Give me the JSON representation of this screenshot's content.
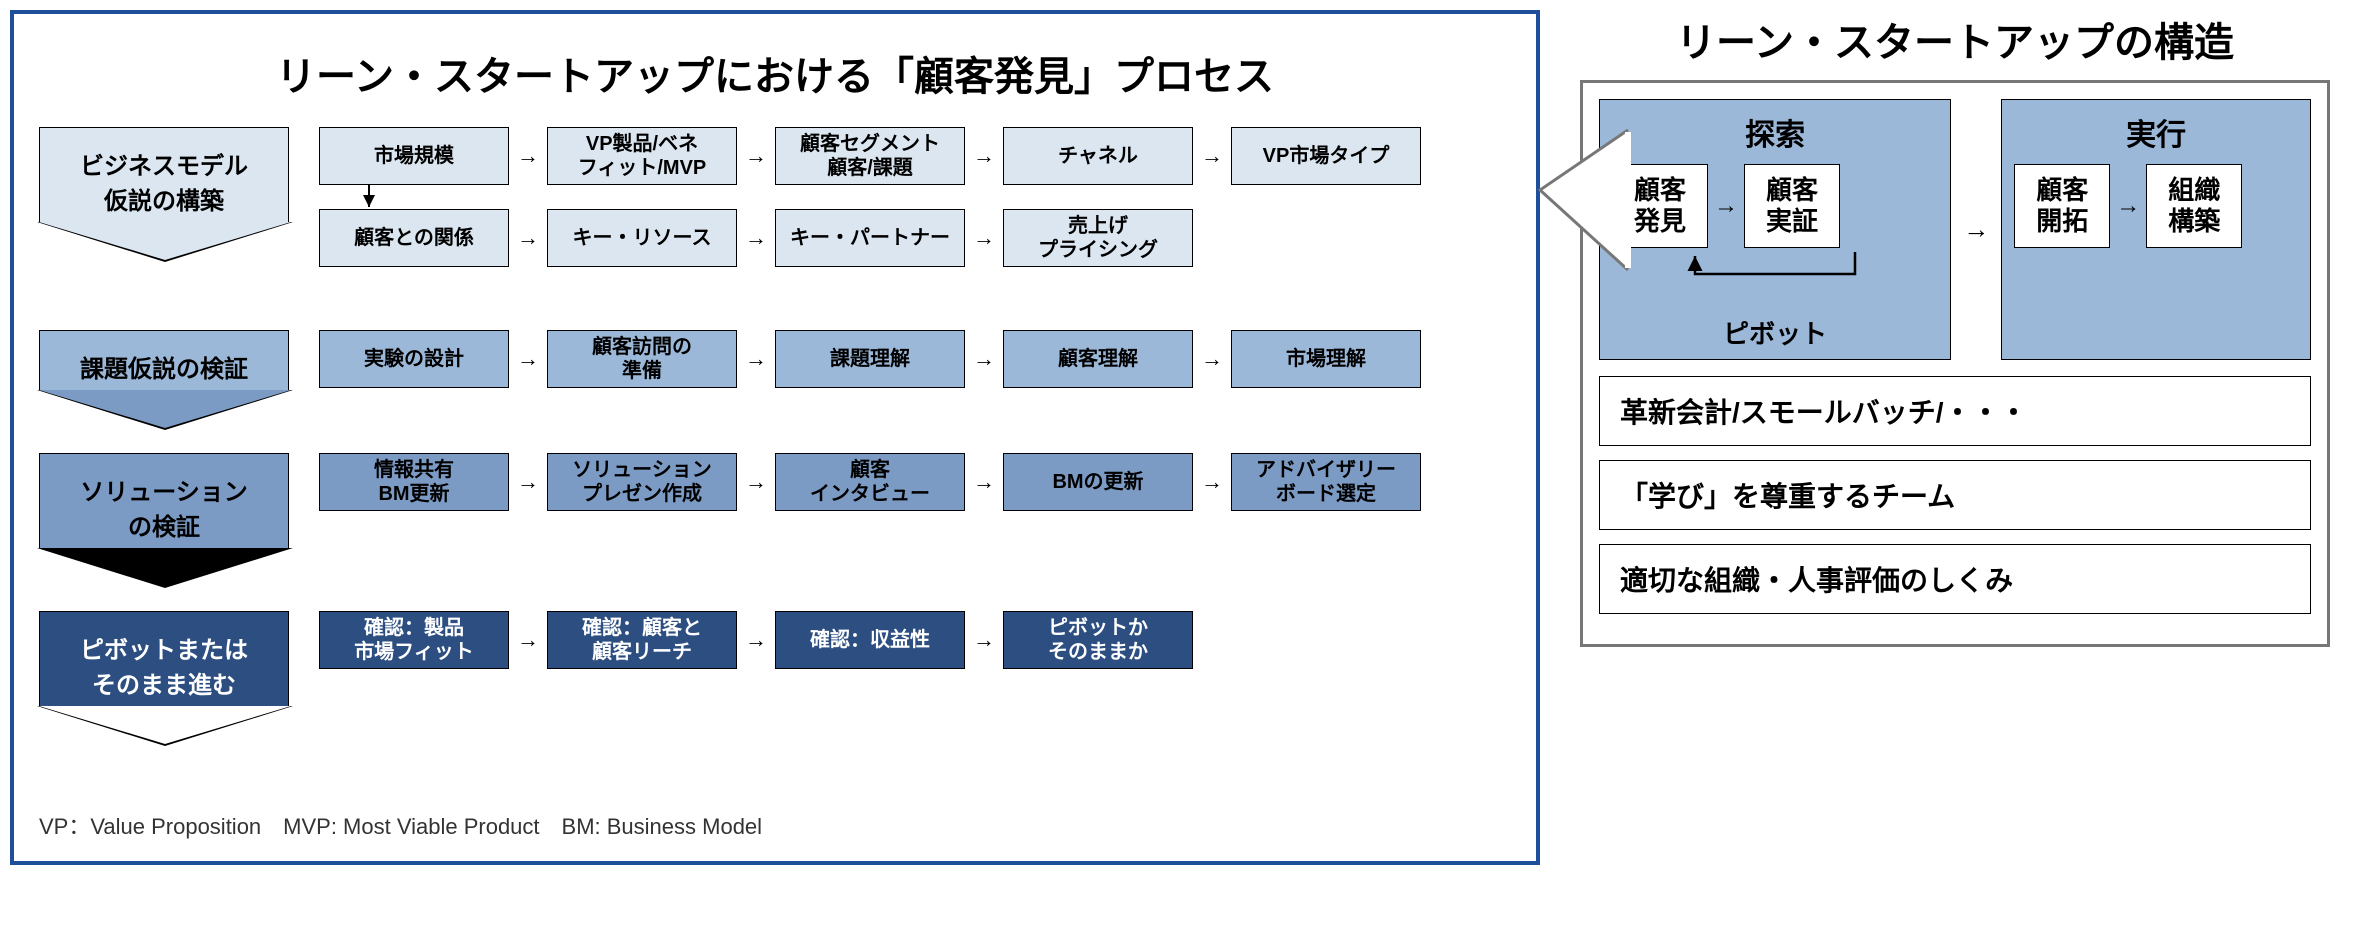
{
  "left": {
    "title": "リーン・スタートアップにおける「顧客発見」プロセス",
    "stages": [
      {
        "label": "ビジネスモデル\n仮説の構築",
        "bg": "#dbe6f1",
        "text": "#000000",
        "box_bg": "#dbe6f1",
        "box_text": "#000000",
        "rows": [
          [
            "市場規模",
            "VP製品/ベネ\nフィット/MVP",
            "顧客セグメント\n顧客/課題",
            "チャネル",
            "VP市場タイプ"
          ],
          [
            "顧客との関係",
            "キー・リソース",
            "キー・パートナー",
            "売上げ\nプライシング"
          ]
        ]
      },
      {
        "label": "課題仮説の検証",
        "bg": "#9cb8d8",
        "text": "#000000",
        "box_bg": "#9cb8d8",
        "box_text": "#000000",
        "rows": [
          [
            "実験の設計",
            "顧客訪問の\n準備",
            "課題理解",
            "顧客理解",
            "市場理解"
          ]
        ]
      },
      {
        "label": "ソリューション\nの検証",
        "bg": "#7b9ac4",
        "text": "#000000",
        "box_bg": "#7b9ac4",
        "box_text": "#000000",
        "rows": [
          [
            "情報共有\nBM更新",
            "ソリューション\nプレゼン作成",
            "顧客\nインタビュー",
            "BMの更新",
            "アドバイザリー\nボード選定"
          ]
        ]
      },
      {
        "label": "ピボットまたは\nそのまま進む",
        "bg": "#2c4e80",
        "text": "#ffffff",
        "box_bg": "#2c4e80",
        "box_text": "#ffffff",
        "rows": [
          [
            "確認：製品\n市場フィット",
            "確認：顧客と\n顧客リーチ",
            "確認：収益性",
            "ピボットか\nそのままか"
          ]
        ]
      }
    ],
    "footnote": "VP：Value Proposition　MVP: Most Viable Product　BM: Business Model"
  },
  "right": {
    "title": "リーン・スタートアップの構造",
    "phases": [
      {
        "label": "探索",
        "boxes": [
          "顧客\n発見",
          "顧客\n実証"
        ],
        "pivot": "ピボット"
      },
      {
        "label": "実行",
        "boxes": [
          "顧客\n開拓",
          "組織\n構築"
        ]
      }
    ],
    "info": [
      "革新会計/スモールバッチ/・・・",
      "「学び」を尊重するチーム",
      "適切な組織・人事評価のしくみ"
    ]
  },
  "colors": {
    "border_main": "#1f4e9a",
    "border_gray": "#777777",
    "arrow": "#000000",
    "phase_bg": "#9cb8d8"
  }
}
